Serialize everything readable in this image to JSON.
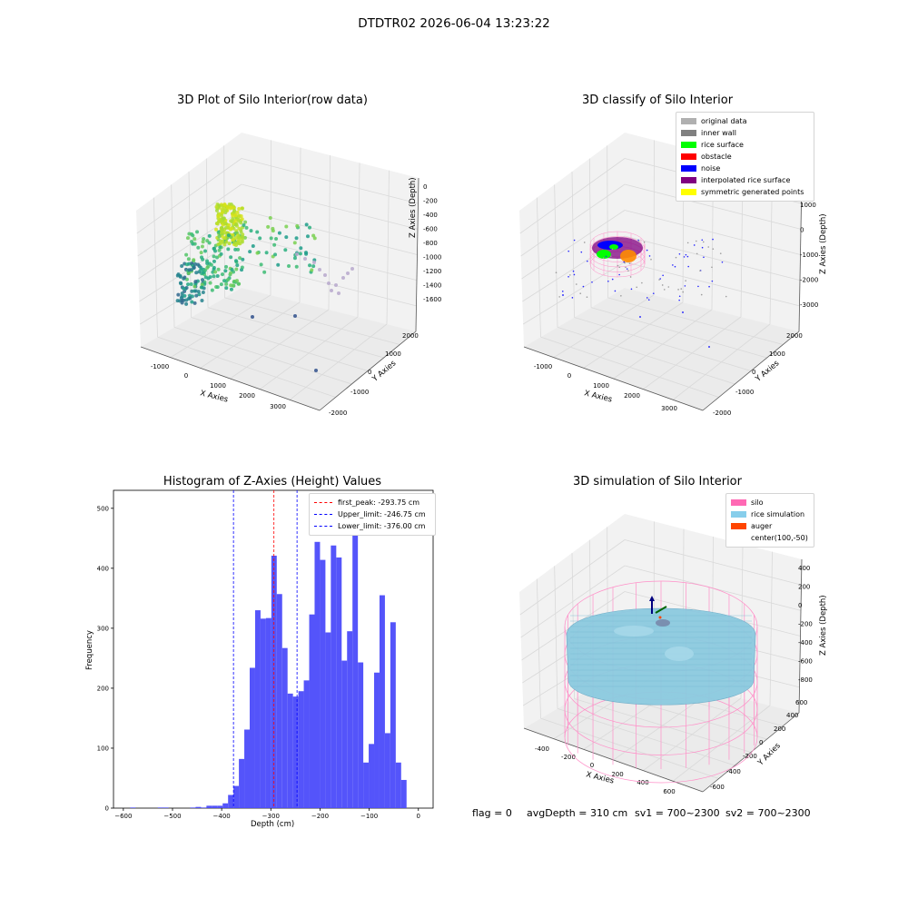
{
  "suptitle": "DTDTR02 2026-06-04 13:23:22",
  "status": {
    "flag": "flag = 0",
    "avg": "avgDepth = 310 cm",
    "sv1": "sv1 = 700~2300",
    "sv2": "sv2 = 700~2300"
  },
  "chart_data": [
    {
      "type": "scatter",
      "subtype": "3d",
      "title": "3D Plot of Silo Interior(row data)",
      "xlabel": "X Axies",
      "ylabel": "Y Axies",
      "zlabel": "Z Axies (Depth)",
      "x_ticks": [
        "-1000",
        "0",
        "1000",
        "2000",
        "3000"
      ],
      "y_ticks": [
        "-2000",
        "-1000",
        "0",
        "1000",
        "2000"
      ],
      "z_ticks": [
        "0",
        "-200",
        "-400",
        "-600",
        "-800",
        "-1000",
        "-1200",
        "-1400",
        "-1600"
      ],
      "colormap": "viridis (by depth)"
    },
    {
      "type": "scatter",
      "subtype": "3d",
      "title": "3D classify of Silo Interior",
      "xlabel": "X Axies",
      "ylabel": "Y Axies",
      "zlabel": "Z Axies (Depth)",
      "x_ticks": [
        "-1000",
        "0",
        "1000",
        "2000",
        "3000"
      ],
      "y_ticks": [
        "-2000",
        "-1000",
        "0",
        "1000",
        "2000"
      ],
      "z_ticks": [
        "1000",
        "0",
        "-1000",
        "-2000",
        "-3000"
      ],
      "legend": [
        {
          "label": "original data",
          "color": "#b0b0b0"
        },
        {
          "label": "inner wall",
          "color": "#808080"
        },
        {
          "label": "rice surface",
          "color": "#00ff00"
        },
        {
          "label": "obstacle",
          "color": "#ff0000"
        },
        {
          "label": "noise",
          "color": "#0000ff"
        },
        {
          "label": "interpolated rice surface",
          "color": "#800080"
        },
        {
          "label": "symmetric generated points",
          "color": "#ffff00"
        }
      ]
    },
    {
      "type": "bar",
      "subtype": "histogram",
      "title": "Histogram of Z-Axies (Height) Values",
      "xlabel": "Depth (cm)",
      "ylabel": "Frequency",
      "xlim": [
        -620,
        30
      ],
      "ylim": [
        0,
        530
      ],
      "x_ticks": [
        -600,
        -500,
        -400,
        -300,
        -200,
        -100,
        0
      ],
      "y_ticks": [
        0,
        100,
        200,
        300,
        400,
        500
      ],
      "bar_color": "#4b4bfa",
      "bins": [
        {
          "x0": -586,
          "x1": -575,
          "v": 1
        },
        {
          "x0": -530,
          "x1": -519,
          "v": 1
        },
        {
          "x0": -519,
          "x1": -508,
          "v": 1
        },
        {
          "x0": -464,
          "x1": -453,
          "v": 1
        },
        {
          "x0": -453,
          "x1": -442,
          "v": 2
        },
        {
          "x0": -442,
          "x1": -431,
          "v": 1
        },
        {
          "x0": -431,
          "x1": -420,
          "v": 4
        },
        {
          "x0": -420,
          "x1": -409,
          "v": 4
        },
        {
          "x0": -409,
          "x1": -398,
          "v": 4
        },
        {
          "x0": -398,
          "x1": -387,
          "v": 8
        },
        {
          "x0": -387,
          "x1": -376,
          "v": 22
        },
        {
          "x0": -376,
          "x1": -365,
          "v": 37
        },
        {
          "x0": -365,
          "x1": -354,
          "v": 82
        },
        {
          "x0": -354,
          "x1": -343,
          "v": 131
        },
        {
          "x0": -343,
          "x1": -332,
          "v": 234
        },
        {
          "x0": -332,
          "x1": -321,
          "v": 330
        },
        {
          "x0": -321,
          "x1": -310,
          "v": 316
        },
        {
          "x0": -310,
          "x1": -299,
          "v": 317
        },
        {
          "x0": -299,
          "x1": -288,
          "v": 421
        },
        {
          "x0": -288,
          "x1": -277,
          "v": 357
        },
        {
          "x0": -277,
          "x1": -266,
          "v": 267
        },
        {
          "x0": -266,
          "x1": -255,
          "v": 191
        },
        {
          "x0": -255,
          "x1": -244,
          "v": 186
        },
        {
          "x0": -244,
          "x1": -233,
          "v": 195
        },
        {
          "x0": -233,
          "x1": -222,
          "v": 213
        },
        {
          "x0": -222,
          "x1": -211,
          "v": 323
        },
        {
          "x0": -211,
          "x1": -200,
          "v": 444
        },
        {
          "x0": -200,
          "x1": -189,
          "v": 414
        },
        {
          "x0": -189,
          "x1": -178,
          "v": 293
        },
        {
          "x0": -178,
          "x1": -167,
          "v": 438
        },
        {
          "x0": -167,
          "x1": -156,
          "v": 418
        },
        {
          "x0": -156,
          "x1": -145,
          "v": 246
        },
        {
          "x0": -145,
          "x1": -134,
          "v": 295
        },
        {
          "x0": -134,
          "x1": -123,
          "v": 501
        },
        {
          "x0": -123,
          "x1": -112,
          "v": 243
        },
        {
          "x0": -112,
          "x1": -101,
          "v": 76
        },
        {
          "x0": -101,
          "x1": -90,
          "v": 107
        },
        {
          "x0": -90,
          "x1": -79,
          "v": 226
        },
        {
          "x0": -79,
          "x1": -68,
          "v": 355
        },
        {
          "x0": -68,
          "x1": -57,
          "v": 125
        },
        {
          "x0": -57,
          "x1": -46,
          "v": 310
        },
        {
          "x0": -46,
          "x1": -35,
          "v": 76
        },
        {
          "x0": -35,
          "x1": -24,
          "v": 47
        }
      ],
      "vlines": [
        {
          "label": "first_peak: -293.75 cm",
          "x": -293.75,
          "color": "#ff0000"
        },
        {
          "label": "Upper_limit: -246.75 cm",
          "x": -246.75,
          "color": "#0000ff"
        },
        {
          "label": "Lower_limit: -376.00 cm",
          "x": -376.0,
          "color": "#0000ff"
        }
      ]
    },
    {
      "type": "scatter",
      "subtype": "3d-surface",
      "title": "3D simulation of Silo Interior",
      "xlabel": "X Axies",
      "ylabel": "Y Axies",
      "zlabel": "Z Axies (Depth)",
      "x_ticks": [
        "-400",
        "-200",
        "0",
        "200",
        "400",
        "600"
      ],
      "y_ticks": [
        "-600",
        "-400",
        "-200",
        "0",
        "200",
        "400",
        "600"
      ],
      "z_ticks": [
        "400",
        "200",
        "0",
        "-200",
        "-400",
        "-600",
        "-800"
      ],
      "legend": [
        {
          "label": "silo",
          "color": "#ff69b4"
        },
        {
          "label": "rice simulation",
          "color": "#87ceeb"
        },
        {
          "label": "auger",
          "color": "#ff4500"
        },
        {
          "label": "center(100,-50)",
          "color": ""
        }
      ]
    }
  ]
}
